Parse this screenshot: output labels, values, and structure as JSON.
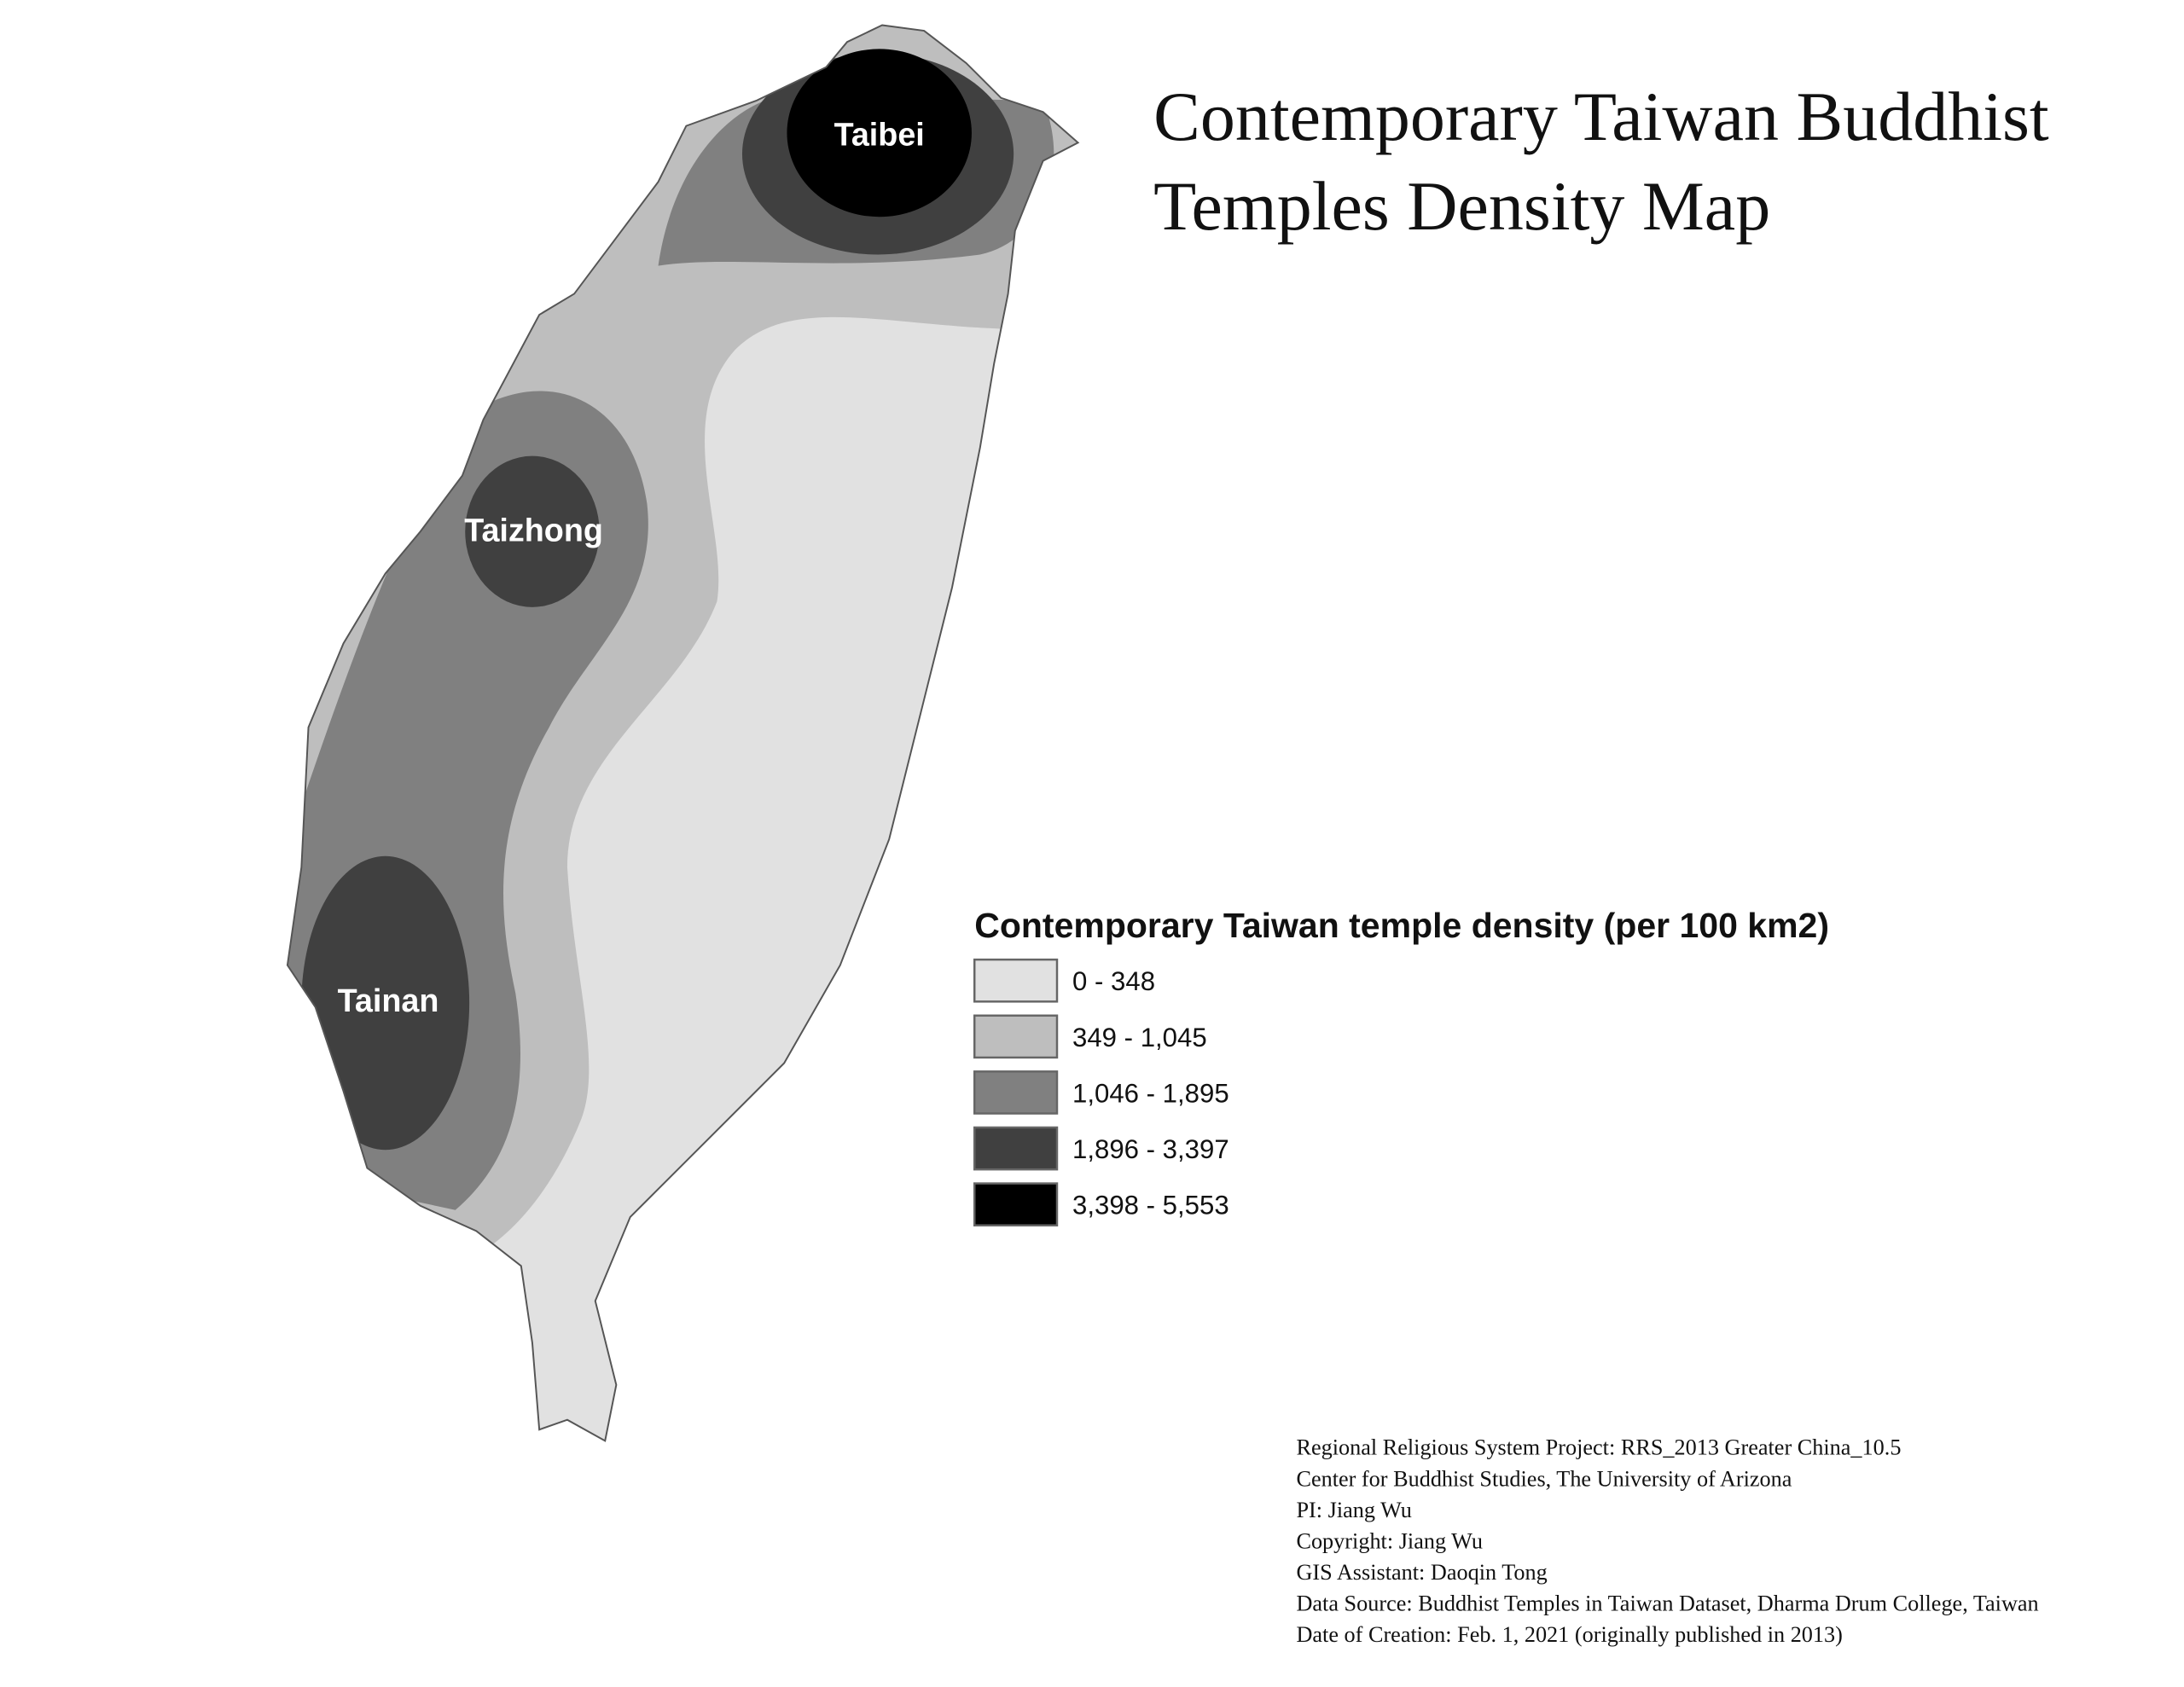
{
  "title_lines": [
    "Contemporary Taiwan Buddhist",
    "Temples Density Map"
  ],
  "cities": [
    "Taibei",
    "Taizhong",
    "Tainan"
  ],
  "legend": {
    "title": "Contemporary Taiwan temple density (per 100 km2)",
    "items": [
      {
        "label": "0 - 348",
        "color": "#e1e1e1"
      },
      {
        "label": "349 - 1,045",
        "color": "#bebebe"
      },
      {
        "label": "1,046 - 1,895",
        "color": "#808080"
      },
      {
        "label": "1,896 - 3,397",
        "color": "#404040"
      },
      {
        "label": "3,398 - 5,553",
        "color": "#000000"
      }
    ]
  },
  "credits": [
    "Regional Religious System Project: RRS_2013 Greater China_10.5",
    "Center for Buddhist Studies, The University of Arizona",
    "PI: Jiang Wu",
    "Copyright: Jiang Wu",
    "GIS Assistant: Daoqin Tong",
    "Data Source: Buddhist Temples in Taiwan Dataset, Dharma Drum College, Taiwan",
    "Date of Creation: Feb. 1, 2021 (originally published in 2013)"
  ]
}
